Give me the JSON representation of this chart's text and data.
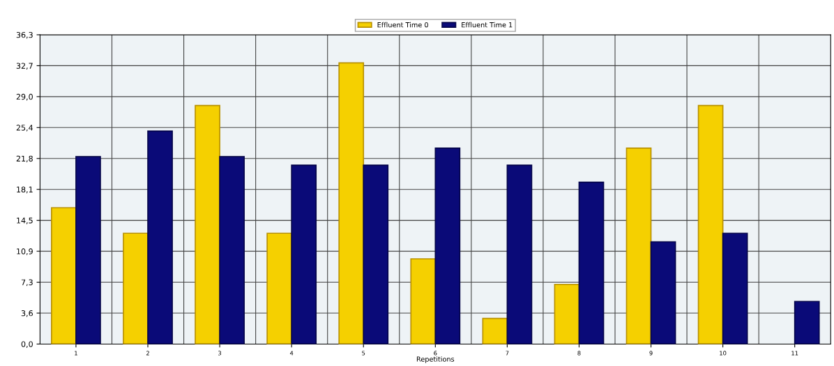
{
  "chart_data": {
    "type": "bar",
    "xlabel": "Repetitions",
    "categories": [
      "1",
      "2",
      "3",
      "4",
      "5",
      "6",
      "7",
      "8",
      "9",
      "10",
      "11"
    ],
    "series": [
      {
        "name": "Effluent Time 0",
        "color": "#f5d000",
        "values": [
          16,
          13,
          28,
          13,
          33,
          10,
          3,
          7,
          23,
          28,
          null
        ]
      },
      {
        "name": "Effluent Time 1",
        "color": "#0a0a78",
        "values": [
          22,
          25,
          22,
          21,
          21,
          23,
          21,
          19,
          12,
          13,
          5
        ]
      }
    ],
    "ylim": [
      0,
      36.3
    ],
    "yticks": [
      {
        "value": 0,
        "label": "0,0"
      },
      {
        "value": 3.63,
        "label": "3,6"
      },
      {
        "value": 7.26,
        "label": "7,3"
      },
      {
        "value": 10.89,
        "label": "10,9"
      },
      {
        "value": 14.52,
        "label": "14,5"
      },
      {
        "value": 18.15,
        "label": "18,1"
      },
      {
        "value": 21.78,
        "label": "21,8"
      },
      {
        "value": 25.41,
        "label": "25,4"
      },
      {
        "value": 29.04,
        "label": "29,0"
      },
      {
        "value": 32.67,
        "label": "32,7"
      },
      {
        "value": 36.3,
        "label": "36,3"
      }
    ],
    "grid": true,
    "legend": "top"
  }
}
